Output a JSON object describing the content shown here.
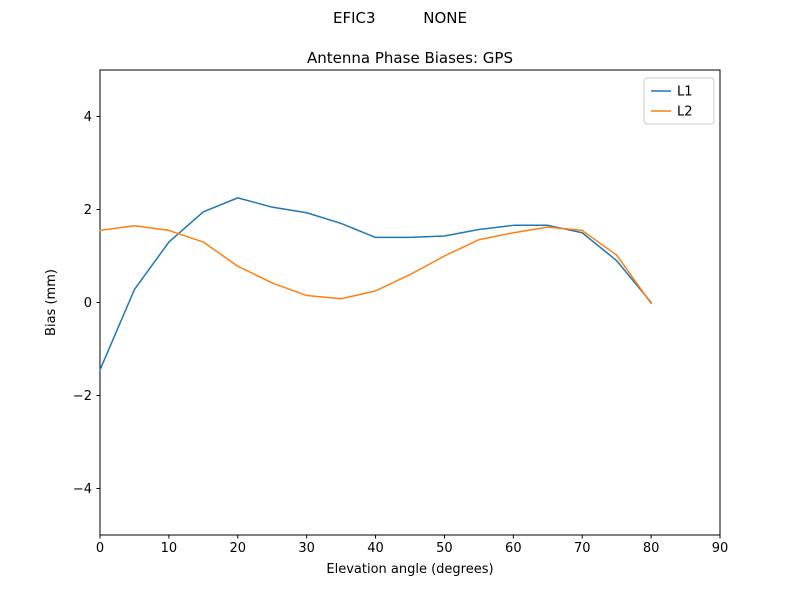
{
  "figure": {
    "suptitle": "EFIC3          NONE"
  },
  "chart_data": {
    "type": "line",
    "title": "Antenna Phase Biases: GPS",
    "xlabel": "Elevation angle (degrees)",
    "ylabel": "Bias (mm)",
    "xlim": [
      0,
      90
    ],
    "ylim": [
      -5,
      5
    ],
    "xticks": [
      0,
      10,
      20,
      30,
      40,
      50,
      60,
      70,
      80,
      90
    ],
    "yticks": [
      -4,
      -2,
      0,
      2,
      4
    ],
    "grid": false,
    "legend_position": "upper right",
    "x": [
      0,
      5,
      10,
      15,
      20,
      25,
      30,
      35,
      40,
      45,
      50,
      55,
      60,
      65,
      70,
      75,
      80
    ],
    "series": [
      {
        "name": "L1",
        "color": "#1f77b4",
        "values": [
          -1.45,
          0.28,
          1.3,
          1.95,
          2.25,
          2.05,
          1.93,
          1.7,
          1.4,
          1.4,
          1.43,
          1.57,
          1.66,
          1.66,
          1.5,
          0.9,
          0.0
        ]
      },
      {
        "name": "L2",
        "color": "#ff7f0e",
        "values": [
          1.55,
          1.65,
          1.55,
          1.3,
          0.78,
          0.42,
          0.15,
          0.08,
          0.25,
          0.6,
          1.0,
          1.35,
          1.5,
          1.62,
          1.55,
          1.02,
          -0.02
        ]
      }
    ]
  }
}
